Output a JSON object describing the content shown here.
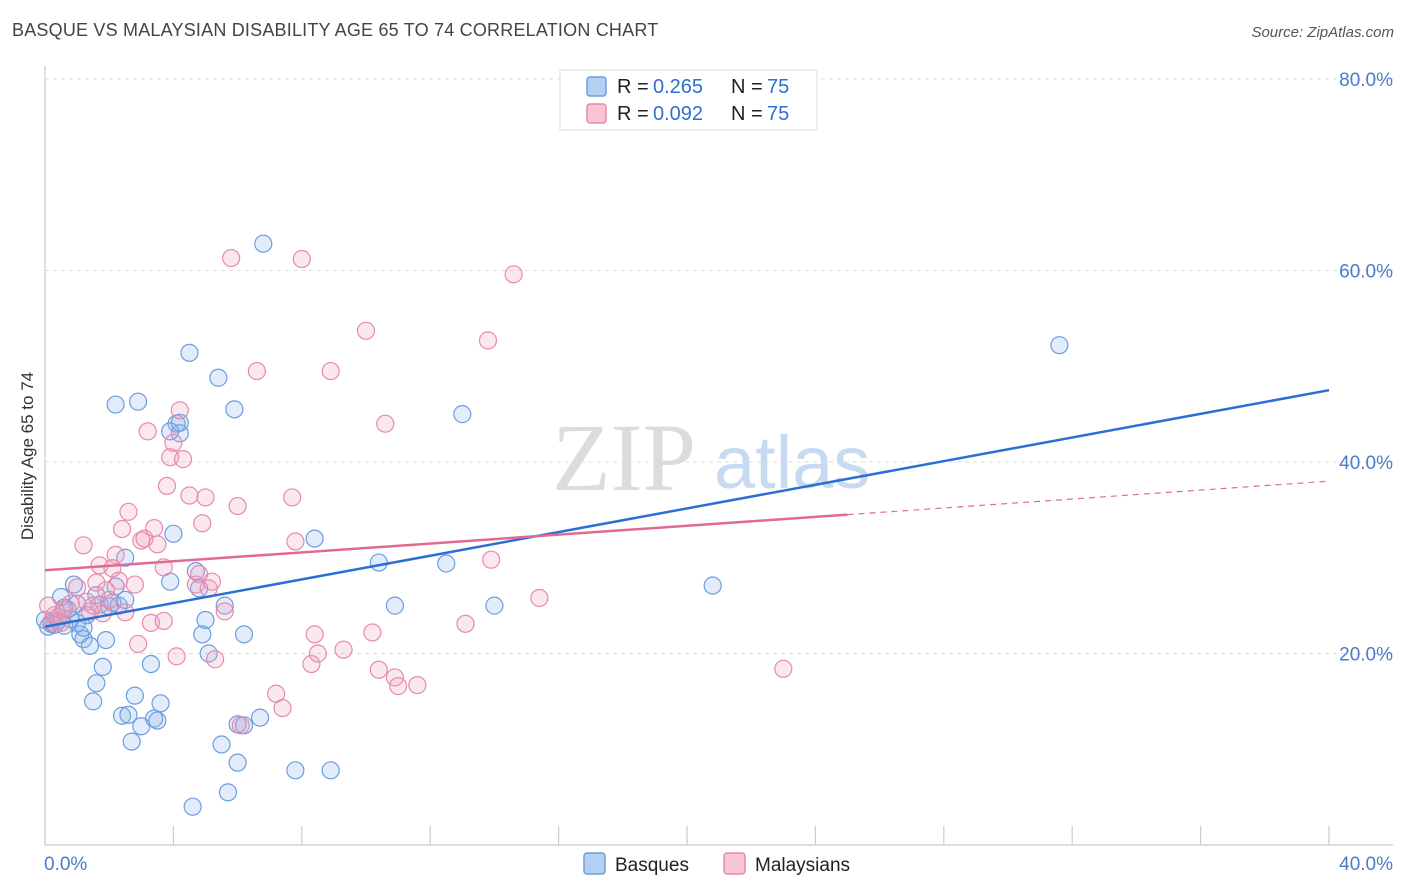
{
  "header": {
    "title": "BASQUE VS MALAYSIAN DISABILITY AGE 65 TO 74 CORRELATION CHART",
    "source": "Source: ZipAtlas.com"
  },
  "watermark": {
    "zip": "ZIP",
    "atlas": "atlas"
  },
  "legend": {
    "r_label": "R =",
    "n_label": "N =",
    "rows": [
      {
        "series": "Basques",
        "r": "0.265",
        "n": "75",
        "color": "#6b9de0"
      },
      {
        "series": "Malaysians",
        "r": "0.092",
        "n": "75",
        "color": "#e88aa8"
      }
    ]
  },
  "chart_data": {
    "type": "scatter",
    "title": "BASQUE VS MALAYSIAN DISABILITY AGE 65 TO 74 CORRELATION CHART",
    "xlabel": "",
    "ylabel": "Disability Age 65 to 74",
    "xlim": [
      0,
      40
    ],
    "ylim": [
      0,
      80
    ],
    "x_tick_labels": [
      "0.0%",
      "40.0%"
    ],
    "y_ticks": [
      20,
      40,
      60,
      80
    ],
    "y_tick_labels": [
      "20.0%",
      "40.0%",
      "60.0%",
      "80.0%"
    ],
    "grid": true,
    "legend_position": "top-center",
    "series": [
      {
        "name": "Basques",
        "color": "#6b9de0",
        "line_color": "#2a6fd4",
        "trend": {
          "x": [
            0,
            40
          ],
          "y": [
            22.8,
            47.5
          ]
        },
        "points": [
          [
            0.1,
            22.8
          ],
          [
            0.2,
            23.1
          ],
          [
            0.3,
            23.0
          ],
          [
            0.4,
            23.4
          ],
          [
            0.5,
            25.9
          ],
          [
            0.6,
            24.8
          ],
          [
            0.8,
            23.6
          ],
          [
            0.9,
            27.2
          ],
          [
            1.0,
            25.2
          ],
          [
            1.1,
            22.0
          ],
          [
            1.2,
            21.5
          ],
          [
            1.3,
            24.0
          ],
          [
            1.4,
            20.8
          ],
          [
            1.5,
            15.0
          ],
          [
            1.6,
            16.9
          ],
          [
            1.7,
            25.1
          ],
          [
            1.8,
            18.6
          ],
          [
            1.9,
            21.4
          ],
          [
            2.0,
            24.9
          ],
          [
            2.1,
            25.3
          ],
          [
            2.2,
            27.0
          ],
          [
            2.3,
            25.0
          ],
          [
            2.4,
            13.5
          ],
          [
            2.5,
            25.6
          ],
          [
            2.5,
            30.0
          ],
          [
            2.6,
            13.6
          ],
          [
            2.7,
            10.8
          ],
          [
            2.8,
            15.6
          ],
          [
            3.0,
            12.4
          ],
          [
            3.3,
            18.9
          ],
          [
            3.4,
            13.2
          ],
          [
            3.6,
            14.8
          ],
          [
            3.9,
            27.5
          ],
          [
            4.0,
            32.5
          ],
          [
            4.1,
            44.0
          ],
          [
            4.2,
            43.0
          ],
          [
            4.5,
            51.4
          ],
          [
            4.6,
            4.0
          ],
          [
            4.7,
            28.6
          ],
          [
            4.8,
            26.8
          ],
          [
            4.9,
            22.0
          ],
          [
            5.0,
            23.5
          ],
          [
            5.1,
            20.0
          ],
          [
            5.4,
            48.8
          ],
          [
            5.5,
            10.5
          ],
          [
            5.6,
            25.0
          ],
          [
            5.7,
            5.5
          ],
          [
            5.9,
            45.5
          ],
          [
            6.0,
            12.6
          ],
          [
            6.0,
            8.6
          ],
          [
            6.2,
            12.5
          ],
          [
            6.2,
            22.0
          ],
          [
            6.7,
            13.3
          ],
          [
            6.8,
            62.8
          ],
          [
            7.8,
            7.8
          ],
          [
            8.4,
            32.0
          ],
          [
            8.9,
            7.8
          ],
          [
            10.4,
            29.5
          ],
          [
            10.9,
            25.0
          ],
          [
            12.5,
            29.4
          ],
          [
            13.0,
            45.0
          ],
          [
            14.0,
            25.0
          ],
          [
            20.8,
            27.1
          ],
          [
            31.6,
            52.2
          ],
          [
            0.0,
            23.5
          ],
          [
            0.7,
            24.6
          ],
          [
            1.0,
            23.2
          ],
          [
            1.6,
            26.1
          ],
          [
            2.9,
            46.3
          ],
          [
            3.9,
            43.2
          ],
          [
            4.2,
            44.1
          ],
          [
            2.2,
            46.0
          ],
          [
            0.6,
            22.9
          ],
          [
            1.2,
            22.7
          ],
          [
            3.5,
            13.0
          ]
        ]
      },
      {
        "name": "Malaysians",
        "color": "#e88aa8",
        "line_color": "#e06b92",
        "trend": {
          "x": [
            0,
            25
          ],
          "y": [
            28.7,
            34.5
          ]
        },
        "trend_dashed": {
          "x": [
            25,
            40
          ],
          "y": [
            34.5,
            38.0
          ]
        },
        "points": [
          [
            0.1,
            25.0
          ],
          [
            0.2,
            23.3
          ],
          [
            0.3,
            24.0
          ],
          [
            0.4,
            23.8
          ],
          [
            0.6,
            24.6
          ],
          [
            0.8,
            25.2
          ],
          [
            1.0,
            26.9
          ],
          [
            1.2,
            31.3
          ],
          [
            1.3,
            25.4
          ],
          [
            1.4,
            24.4
          ],
          [
            1.6,
            27.4
          ],
          [
            1.7,
            29.2
          ],
          [
            1.8,
            24.2
          ],
          [
            1.9,
            26.6
          ],
          [
            2.0,
            25.6
          ],
          [
            2.2,
            30.3
          ],
          [
            2.3,
            27.6
          ],
          [
            2.4,
            33.0
          ],
          [
            2.5,
            24.3
          ],
          [
            2.6,
            34.8
          ],
          [
            2.8,
            27.2
          ],
          [
            2.9,
            21.0
          ],
          [
            3.0,
            31.8
          ],
          [
            3.1,
            32.0
          ],
          [
            3.2,
            43.2
          ],
          [
            3.3,
            23.2
          ],
          [
            3.4,
            33.1
          ],
          [
            3.5,
            31.4
          ],
          [
            3.7,
            23.4
          ],
          [
            3.8,
            37.5
          ],
          [
            3.9,
            40.5
          ],
          [
            4.0,
            42.0
          ],
          [
            4.1,
            19.7
          ],
          [
            4.2,
            45.4
          ],
          [
            4.3,
            40.3
          ],
          [
            4.5,
            36.5
          ],
          [
            4.7,
            27.2
          ],
          [
            4.8,
            28.3
          ],
          [
            4.9,
            33.6
          ],
          [
            5.0,
            36.3
          ],
          [
            5.1,
            26.8
          ],
          [
            5.2,
            27.5
          ],
          [
            5.3,
            19.4
          ],
          [
            5.6,
            24.4
          ],
          [
            5.8,
            61.3
          ],
          [
            6.0,
            35.4
          ],
          [
            6.1,
            12.5
          ],
          [
            6.6,
            49.5
          ],
          [
            7.2,
            15.8
          ],
          [
            7.4,
            14.3
          ],
          [
            7.7,
            36.3
          ],
          [
            7.8,
            31.7
          ],
          [
            8.0,
            61.2
          ],
          [
            8.3,
            18.9
          ],
          [
            8.4,
            22.0
          ],
          [
            8.5,
            20.0
          ],
          [
            8.9,
            49.5
          ],
          [
            9.3,
            20.4
          ],
          [
            10.0,
            53.7
          ],
          [
            10.2,
            22.2
          ],
          [
            10.4,
            18.3
          ],
          [
            10.6,
            44.0
          ],
          [
            10.9,
            17.5
          ],
          [
            11.0,
            16.6
          ],
          [
            11.6,
            16.7
          ],
          [
            13.1,
            23.1
          ],
          [
            13.8,
            52.7
          ],
          [
            13.9,
            29.8
          ],
          [
            14.6,
            59.6
          ],
          [
            15.4,
            25.8
          ],
          [
            23.0,
            18.4
          ],
          [
            0.5,
            23.2
          ],
          [
            1.5,
            25.0
          ],
          [
            3.7,
            29.0
          ],
          [
            2.1,
            28.9
          ]
        ]
      }
    ]
  }
}
